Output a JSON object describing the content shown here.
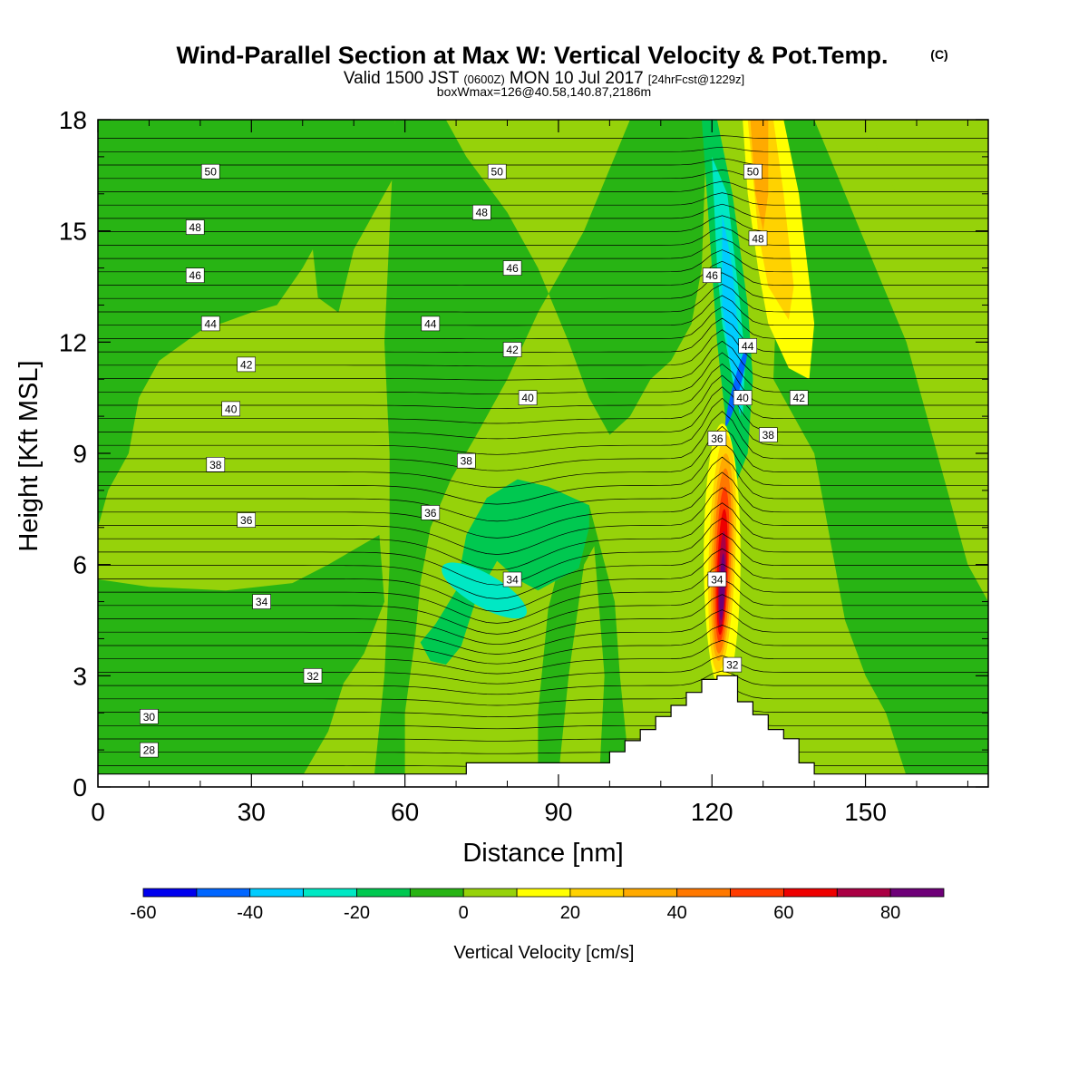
{
  "header": {
    "title": "Wind-Parallel Section at Max W: Vertical Velocity & Pot.Temp.",
    "copyright": "(C)",
    "valid_prefix": "Valid 1500 JST",
    "valid_utc": "(0600Z)",
    "valid_date": "MON 10 Jul 2017",
    "forecast": "[24hrFcst@1229z]",
    "boxw": "boxWmax=126@40.58,140.87,2186m"
  },
  "chart_data": {
    "type": "contour",
    "xlabel": "Distance [nm]",
    "ylabel": "Height [Kft MSL]",
    "xlim": [
      0,
      174
    ],
    "ylim": [
      0,
      18
    ],
    "xticks": [
      0,
      30,
      60,
      90,
      120,
      150
    ],
    "yticks": [
      0,
      3,
      6,
      9,
      12,
      15,
      18
    ],
    "colorbar": {
      "title": "Vertical Velocity [cm/s]",
      "levels": [
        -60,
        -50,
        -40,
        -30,
        -20,
        -10,
        0,
        10,
        20,
        30,
        40,
        50,
        60,
        70,
        80,
        90
      ],
      "colors": [
        "#0000ee",
        "#0066ff",
        "#00ccff",
        "#00e8c4",
        "#00c850",
        "#28b414",
        "#96d20a",
        "#ffff00",
        "#ffd200",
        "#ffaa00",
        "#ff7800",
        "#ff3c00",
        "#ee0000",
        "#aa0044",
        "#6e0078"
      ],
      "tick_values": [
        -60,
        -40,
        -20,
        0,
        20,
        40,
        60,
        80
      ],
      "tick_labels": [
        "-60",
        "-40",
        "-20",
        "0",
        "20",
        "40",
        "60",
        "80"
      ]
    },
    "vertical_velocity_features": [
      {
        "region": "strong updraft core",
        "x": 122,
        "y": [
          3,
          9.5
        ],
        "max": 85,
        "units": "cm/s"
      },
      {
        "region": "downdraft aloft",
        "x": 125,
        "y": [
          9.5,
          17
        ],
        "min": -55,
        "units": "cm/s"
      },
      {
        "region": "updraft band aloft",
        "x": 130,
        "y": [
          9,
          18
        ],
        "max": 45,
        "units": "cm/s"
      },
      {
        "region": "weak downdraft",
        "x": 75,
        "y": [
          4,
          8
        ],
        "min": -25,
        "units": "cm/s"
      }
    ],
    "isentropes": {
      "quantity": "potential temperature",
      "labels": [
        {
          "value": 28,
          "x": 10,
          "y": 1.0
        },
        {
          "value": 30,
          "x": 10,
          "y": 1.9
        },
        {
          "value": 32,
          "x": 42,
          "y": 3.0
        },
        {
          "value": 34,
          "x": 32,
          "y": 5.0
        },
        {
          "value": 36,
          "x": 29,
          "y": 7.2
        },
        {
          "value": 38,
          "x": 23,
          "y": 8.7
        },
        {
          "value": 40,
          "x": 26,
          "y": 10.2
        },
        {
          "value": 42,
          "x": 29,
          "y": 11.4
        },
        {
          "value": 44,
          "x": 22,
          "y": 12.5
        },
        {
          "value": 46,
          "x": 19,
          "y": 13.8
        },
        {
          "value": 48,
          "x": 19,
          "y": 15.1
        },
        {
          "value": 50,
          "x": 22,
          "y": 16.6
        },
        {
          "value": 50,
          "x": 78,
          "y": 16.6
        },
        {
          "value": 48,
          "x": 75,
          "y": 15.5
        },
        {
          "value": 46,
          "x": 81,
          "y": 14.0
        },
        {
          "value": 44,
          "x": 65,
          "y": 12.5
        },
        {
          "value": 42,
          "x": 81,
          "y": 11.8
        },
        {
          "value": 40,
          "x": 84,
          "y": 10.5
        },
        {
          "value": 38,
          "x": 72,
          "y": 8.8
        },
        {
          "value": 36,
          "x": 65,
          "y": 7.4
        },
        {
          "value": 34,
          "x": 81,
          "y": 5.6
        },
        {
          "value": 34,
          "x": 121,
          "y": 5.6
        },
        {
          "value": 32,
          "x": 124,
          "y": 3.3
        },
        {
          "value": 36,
          "x": 121,
          "y": 9.4
        },
        {
          "value": 40,
          "x": 126,
          "y": 10.5
        },
        {
          "value": 44,
          "x": 127,
          "y": 11.9
        },
        {
          "value": 46,
          "x": 120,
          "y": 13.8
        },
        {
          "value": 48,
          "x": 129,
          "y": 14.8
        },
        {
          "value": 50,
          "x": 128,
          "y": 16.6
        },
        {
          "value": 38,
          "x": 131,
          "y": 9.5
        },
        {
          "value": 42,
          "x": 137,
          "y": 10.5
        }
      ]
    },
    "terrain_height_kft": [
      [
        0,
        0.35
      ],
      [
        72,
        0.35
      ],
      [
        72,
        0.65
      ],
      [
        100,
        0.65
      ],
      [
        100,
        0.95
      ],
      [
        103,
        0.95
      ],
      [
        103,
        1.25
      ],
      [
        106,
        1.25
      ],
      [
        106,
        1.55
      ],
      [
        109,
        1.55
      ],
      [
        109,
        1.9
      ],
      [
        112,
        1.9
      ],
      [
        112,
        2.2
      ],
      [
        115,
        2.2
      ],
      [
        115,
        2.55
      ],
      [
        118,
        2.55
      ],
      [
        118,
        2.9
      ],
      [
        121,
        2.9
      ],
      [
        121,
        3.0
      ],
      [
        125,
        3.0
      ],
      [
        125,
        2.3
      ],
      [
        128,
        2.3
      ],
      [
        128,
        1.95
      ],
      [
        131,
        1.95
      ],
      [
        131,
        1.55
      ],
      [
        134,
        1.55
      ],
      [
        134,
        1.3
      ],
      [
        137,
        1.3
      ],
      [
        137,
        0.65
      ],
      [
        140,
        0.65
      ],
      [
        140,
        0.35
      ],
      [
        174,
        0.35
      ]
    ]
  }
}
